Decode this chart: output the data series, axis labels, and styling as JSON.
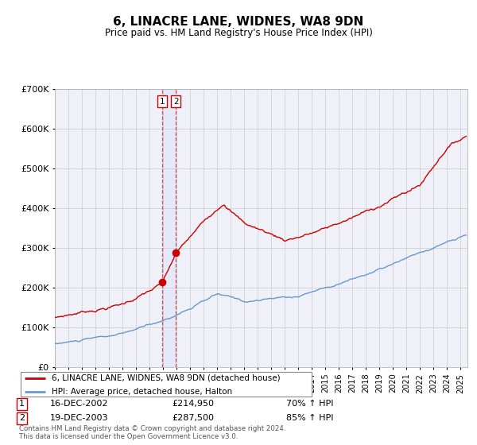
{
  "title": "6, LINACRE LANE, WIDNES, WA8 9DN",
  "subtitle": "Price paid vs. HM Land Registry's House Price Index (HPI)",
  "hpi_label": "HPI: Average price, detached house, Halton",
  "property_label": "6, LINACRE LANE, WIDNES, WA8 9DN (detached house)",
  "red_color": "#cc0000",
  "blue_color": "#6699cc",
  "sale1_date_label": "16-DEC-2002",
  "sale1_price": 214950,
  "sale1_hpi_pct": "70% ↑ HPI",
  "sale2_date_label": "19-DEC-2003",
  "sale2_price": 287500,
  "sale2_hpi_pct": "85% ↑ HPI",
  "ylim": [
    0,
    700000
  ],
  "yticks": [
    0,
    100000,
    200000,
    300000,
    400000,
    500000,
    600000,
    700000
  ],
  "footer": "Contains HM Land Registry data © Crown copyright and database right 2024.\nThis data is licensed under the Open Government Licence v3.0.",
  "background_color": "#f0f0f8",
  "xstart": 1995,
  "xend": 2025.5
}
